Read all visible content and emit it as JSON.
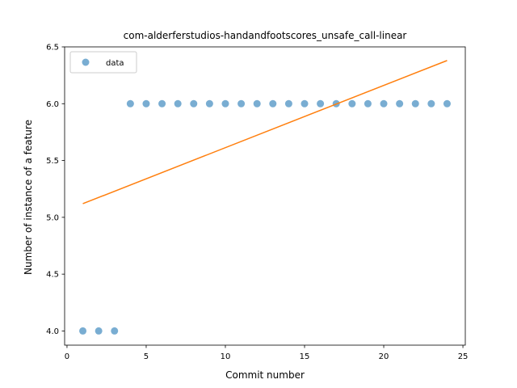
{
  "chart_data": {
    "type": "scatter",
    "title": "com-alderferstudios-handandfootscores_unsafe_call-linear",
    "xlabel": "Commit number",
    "ylabel": "Number of instance of a feature",
    "xlim": [
      -0.15,
      25.15
    ],
    "ylim": [
      3.875,
      6.5
    ],
    "xticks": [
      0,
      5,
      10,
      15,
      20,
      25
    ],
    "yticks": [
      4.0,
      4.5,
      5.0,
      5.5,
      6.0,
      6.5
    ],
    "xtick_labels": [
      "0",
      "5",
      "10",
      "15",
      "20",
      "25"
    ],
    "ytick_labels": [
      "4.0",
      "4.5",
      "5.0",
      "5.5",
      "6.0",
      "6.5"
    ],
    "grid": false,
    "legend": {
      "position": "top-left",
      "entries": [
        "data"
      ]
    },
    "series": [
      {
        "name": "data",
        "kind": "scatter",
        "color": "#1f77b4",
        "x": [
          1,
          2,
          3,
          4,
          5,
          6,
          7,
          8,
          9,
          10,
          11,
          12,
          13,
          14,
          15,
          16,
          17,
          18,
          19,
          20,
          21,
          22,
          23,
          24
        ],
        "y": [
          4,
          4,
          4,
          6,
          6,
          6,
          6,
          6,
          6,
          6,
          6,
          6,
          6,
          6,
          6,
          6,
          6,
          6,
          6,
          6,
          6,
          6,
          6,
          6
        ]
      },
      {
        "kind": "line",
        "color": "#ff7f0e",
        "x": [
          1,
          24
        ],
        "y": [
          5.12,
          6.38
        ]
      }
    ]
  }
}
